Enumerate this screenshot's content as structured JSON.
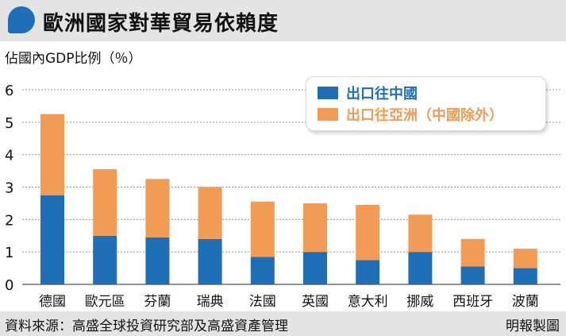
{
  "header": {
    "title": "歐洲國家對華貿易依賴度"
  },
  "source_note": "資料來源：高盛全球投資研究部及高盛資產管理",
  "credit": "明報製圖",
  "colors": {
    "china": "#1f6fb8",
    "asia_ex_china": "#f19b54",
    "grid": "#999999"
  },
  "chart_data": {
    "type": "bar",
    "stacked": true,
    "ylabel": "佔國內GDP比例（％）",
    "ylim": [
      0,
      6
    ],
    "yticks": [
      0,
      1,
      2,
      3,
      4,
      5,
      6
    ],
    "grid": true,
    "legend_position": "top-right",
    "categories": [
      "德國",
      "歐元區",
      "芬蘭",
      "瑞典",
      "法國",
      "英國",
      "意大利",
      "挪威",
      "西班牙",
      "波蘭"
    ],
    "series": [
      {
        "name": "出口往中國",
        "values": [
          2.75,
          1.5,
          1.45,
          1.4,
          0.85,
          1.0,
          0.75,
          1.0,
          0.55,
          0.5
        ]
      },
      {
        "name": "出口往亞洲（中國除外）",
        "values": [
          2.5,
          2.05,
          1.8,
          1.6,
          1.7,
          1.5,
          1.7,
          1.15,
          0.85,
          0.6
        ]
      }
    ]
  }
}
